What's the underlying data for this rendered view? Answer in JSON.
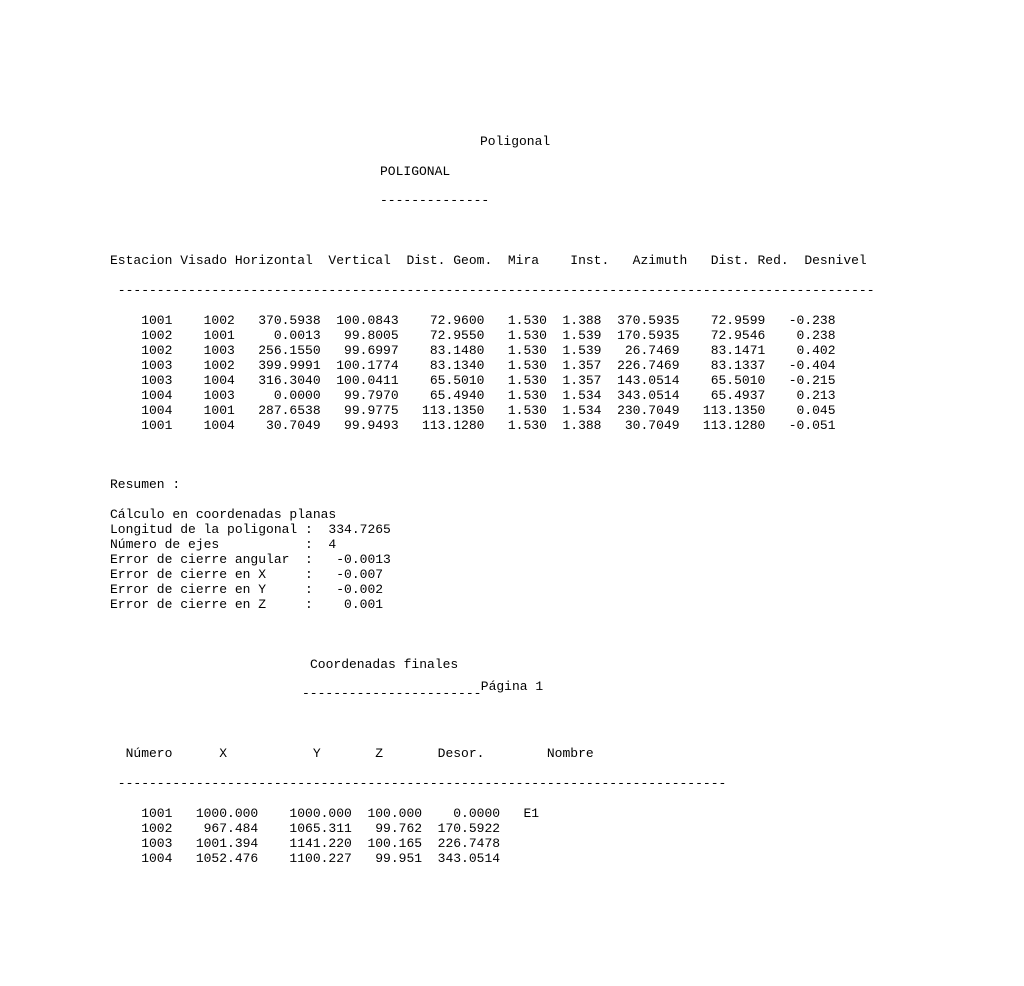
{
  "titles": {
    "main": "Poligonal",
    "sub": "POLIGONAL",
    "sub_underline": "--------------",
    "coords": "Coordenadas finales",
    "coords_underline": "-----------------------"
  },
  "table1": {
    "headers": [
      "Estacion",
      "Visado",
      "Horizontal",
      "Vertical",
      "Dist. Geom.",
      "Mira",
      "Inst.",
      "Azimuth",
      "Dist. Red.",
      "Desnivel"
    ],
    "divider": " -------------------------------------------------------------------------------------------------",
    "rows": [
      [
        "1001",
        "1002",
        "370.5938",
        "100.0843",
        "72.9600",
        "1.530",
        "1.388",
        "370.5935",
        "72.9599",
        "-0.238"
      ],
      [
        "1002",
        "1001",
        "0.0013",
        "99.8005",
        "72.9550",
        "1.530",
        "1.539",
        "170.5935",
        "72.9546",
        "0.238"
      ],
      [
        "1002",
        "1003",
        "256.1550",
        "99.6997",
        "83.1480",
        "1.530",
        "1.539",
        "26.7469",
        "83.1471",
        "0.402"
      ],
      [
        "1003",
        "1002",
        "399.9991",
        "100.1774",
        "83.1340",
        "1.530",
        "1.357",
        "226.7469",
        "83.1337",
        "-0.404"
      ],
      [
        "1003",
        "1004",
        "316.3040",
        "100.0411",
        "65.5010",
        "1.530",
        "1.357",
        "143.0514",
        "65.5010",
        "-0.215"
      ],
      [
        "1004",
        "1003",
        "0.0000",
        "99.7970",
        "65.4940",
        "1.530",
        "1.534",
        "343.0514",
        "65.4937",
        "0.213"
      ],
      [
        "1004",
        "1001",
        "287.6538",
        "99.9775",
        "113.1350",
        "1.530",
        "1.534",
        "230.7049",
        "113.1350",
        "0.045"
      ],
      [
        "1001",
        "1004",
        "30.7049",
        "99.9493",
        "113.1280",
        "1.530",
        "1.388",
        "30.7049",
        "113.1280",
        "-0.051"
      ]
    ]
  },
  "summary": {
    "header": "Resumen :",
    "lines": [
      "Cálculo en coordenadas planas",
      "Longitud de la poligonal :  334.7265",
      "Número de ejes           :  4",
      "Error de cierre angular  :   -0.0013",
      "Error de cierre en X     :   -0.007",
      "Error de cierre en Y     :   -0.002",
      "Error de cierre en Z     :    0.001"
    ]
  },
  "table2": {
    "headers": [
      "Número",
      "X",
      "Y",
      "Z",
      "Desor.",
      "Nombre"
    ],
    "divider": " ------------------------------------------------------------------------------",
    "rows": [
      [
        "1001",
        "1000.000",
        "1000.000",
        "100.000",
        "0.0000",
        "E1"
      ],
      [
        "1002",
        "967.484",
        "1065.311",
        "99.762",
        "170.5922",
        ""
      ],
      [
        "1003",
        "1001.394",
        "1141.220",
        "100.165",
        "226.7478",
        ""
      ],
      [
        "1004",
        "1052.476",
        "1100.227",
        "99.951",
        "343.0514",
        ""
      ]
    ]
  },
  "footer": "Página 1",
  "layout": {
    "t1_col_widths": [
      9,
      7,
      12,
      10,
      13,
      8,
      8,
      10,
      12,
      10
    ],
    "t1_header_align": [
      "left",
      "left",
      "left",
      "left",
      "left",
      "left",
      "left",
      "left",
      "left",
      "left"
    ],
    "t1_row_align": [
      "right",
      "right",
      "right",
      "right",
      "right",
      "right",
      "right",
      "right",
      "right",
      "right"
    ],
    "t2_col_widths": [
      8,
      11,
      12,
      10,
      10,
      7
    ],
    "t2_header_align": [
      "right",
      "right",
      "right",
      "right",
      "right",
      "right"
    ],
    "t2_row_align": [
      "right",
      "right",
      "right",
      "right",
      "right",
      "left"
    ]
  }
}
